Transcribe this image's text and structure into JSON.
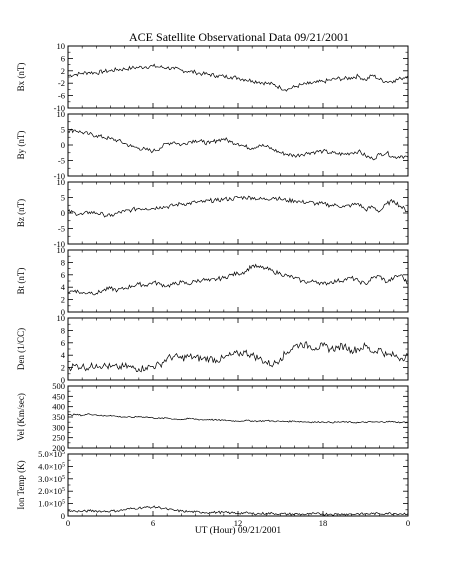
{
  "title": "ACE Satellite Observational Data   09/21/2001",
  "xlabel": "UT (Hour)   09/21/2001",
  "x_tick_labels": [
    "0",
    "6",
    "12",
    "18",
    "0"
  ],
  "chart_data": [
    {
      "type": "line",
      "ylabel": "Bx (nT)",
      "ylim": [
        -10,
        10
      ],
      "yticks": [
        10,
        6,
        2,
        -2,
        -6,
        -10
      ],
      "ytick_labels": [
        "10",
        "6",
        "2",
        "-2",
        "-6",
        "-10"
      ],
      "x": [
        0,
        0.5,
        1,
        1.5,
        2,
        2.5,
        3,
        3.5,
        4,
        4.5,
        5,
        5.5,
        6,
        6.5,
        7,
        7.5,
        8,
        8.5,
        9,
        9.5,
        10,
        10.5,
        11,
        11.5,
        12,
        12.5,
        13,
        13.5,
        14,
        14.5,
        15,
        15.5,
        16,
        16.5,
        17,
        17.5,
        18,
        18.5,
        19,
        19.5,
        20,
        20.5,
        21,
        21.5,
        22,
        22.5,
        23,
        23.5,
        24
      ],
      "series": [
        {
          "values": [
            0.5,
            0.8,
            1.2,
            1.5,
            1.3,
            1.8,
            2.0,
            2.4,
            2.6,
            2.9,
            3.1,
            3.3,
            3.5,
            3.2,
            3.0,
            2.6,
            2.2,
            1.8,
            1.5,
            1.0,
            0.8,
            0.4,
            0.2,
            0.0,
            -0.3,
            -0.8,
            -1.2,
            -1.6,
            -2.0,
            -2.4,
            -3.5,
            -4.0,
            -3.2,
            -2.5,
            -2.2,
            -1.8,
            -1.5,
            -1.0,
            -0.5,
            -0.6,
            -0.2,
            0.3,
            -1.0,
            0.6,
            -0.8,
            -1.5,
            -1.2,
            -0.5,
            0.5
          ]
        }
      ]
    },
    {
      "type": "line",
      "ylabel": "By (nT)",
      "ylim": [
        -10,
        10
      ],
      "yticks": [
        10,
        5,
        0,
        -5,
        -10
      ],
      "ytick_labels": [
        "10",
        "5",
        "0",
        "-5",
        "-10"
      ],
      "x": [
        0,
        0.5,
        1,
        1.5,
        2,
        2.5,
        3,
        3.5,
        4,
        4.5,
        5,
        5.5,
        6,
        6.5,
        7,
        7.5,
        8,
        8.5,
        9,
        9.5,
        10,
        10.5,
        11,
        11.5,
        12,
        12.5,
        13,
        13.5,
        14,
        14.5,
        15,
        15.5,
        16,
        16.5,
        17,
        17.5,
        18,
        18.5,
        19,
        19.5,
        20,
        20.5,
        21,
        21.5,
        22,
        22.5,
        23,
        23.5,
        24
      ],
      "series": [
        {
          "values": [
            4.5,
            4.8,
            4.0,
            3.5,
            3.0,
            2.5,
            2.0,
            1.5,
            0.5,
            -0.5,
            -1.0,
            -1.5,
            -2.0,
            -1.0,
            0.5,
            1.0,
            0.0,
            1.0,
            1.5,
            1.0,
            0.5,
            1.5,
            2.0,
            1.0,
            0.5,
            -0.5,
            -1.0,
            0.0,
            -0.5,
            -1.5,
            -2.5,
            -3.0,
            -3.5,
            -3.0,
            -2.5,
            -2.2,
            -2.0,
            -2.5,
            -2.8,
            -3.0,
            -2.5,
            -2.0,
            -3.5,
            -4.5,
            -3.0,
            -2.5,
            -4.0,
            -3.5,
            -4.0
          ]
        }
      ]
    },
    {
      "type": "line",
      "ylabel": "Bz (nT)",
      "ylim": [
        -10,
        10
      ],
      "yticks": [
        10,
        5,
        0,
        -5,
        -10
      ],
      "ytick_labels": [
        "10",
        "5",
        "0",
        "-5",
        "-10"
      ],
      "x": [
        0,
        0.5,
        1,
        1.5,
        2,
        2.5,
        3,
        3.5,
        4,
        4.5,
        5,
        5.5,
        6,
        6.5,
        7,
        7.5,
        8,
        8.5,
        9,
        9.5,
        10,
        10.5,
        11,
        11.5,
        12,
        12.5,
        13,
        13.5,
        14,
        14.5,
        15,
        15.5,
        16,
        16.5,
        17,
        17.5,
        18,
        18.5,
        19,
        19.5,
        20,
        20.5,
        21,
        21.5,
        22,
        22.5,
        23,
        23.5,
        24
      ],
      "series": [
        {
          "values": [
            0.5,
            0.0,
            -0.5,
            0.3,
            0.0,
            -0.5,
            -1.0,
            0.0,
            0.5,
            1.0,
            1.5,
            1.5,
            1.5,
            2.0,
            2.0,
            2.5,
            3.0,
            3.0,
            3.5,
            3.5,
            4.0,
            4.0,
            4.5,
            4.5,
            5.0,
            5.0,
            5.0,
            4.5,
            4.5,
            5.0,
            4.5,
            4.0,
            4.0,
            3.5,
            3.5,
            3.0,
            3.0,
            2.5,
            2.5,
            2.0,
            2.5,
            3.0,
            1.0,
            2.0,
            0.5,
            3.0,
            4.0,
            2.0,
            0.5
          ]
        }
      ]
    },
    {
      "type": "line",
      "ylabel": "Bt (nT)",
      "ylim": [
        0,
        10
      ],
      "yticks": [
        10,
        8,
        6,
        4,
        2,
        0
      ],
      "ytick_labels": [
        "10",
        "8",
        "6",
        "4",
        "2",
        "0"
      ],
      "x": [
        0,
        0.5,
        1,
        1.5,
        2,
        2.5,
        3,
        3.5,
        4,
        4.5,
        5,
        5.5,
        6,
        6.5,
        7,
        7.5,
        8,
        8.5,
        9,
        9.5,
        10,
        10.5,
        11,
        11.5,
        12,
        12.5,
        13,
        13.5,
        14,
        14.5,
        15,
        15.5,
        16,
        16.5,
        17,
        17.5,
        18,
        18.5,
        19,
        19.5,
        20,
        20.5,
        21,
        21.5,
        22,
        22.5,
        23,
        23.5,
        24
      ],
      "series": [
        {
          "values": [
            3.2,
            3.5,
            3.0,
            3.2,
            3.0,
            3.5,
            3.8,
            3.5,
            3.8,
            4.2,
            4.5,
            4.3,
            4.8,
            4.5,
            4.2,
            4.5,
            4.8,
            4.5,
            5.0,
            5.2,
            5.0,
            5.3,
            5.5,
            6.0,
            6.2,
            6.5,
            7.5,
            7.2,
            7.0,
            6.5,
            6.2,
            5.8,
            5.5,
            5.0,
            4.8,
            5.0,
            4.5,
            4.8,
            5.0,
            5.2,
            5.5,
            5.0,
            4.5,
            5.5,
            5.8,
            4.8,
            5.5,
            6.0,
            4.5
          ]
        }
      ]
    },
    {
      "type": "line",
      "ylabel": "Den (1/CC)",
      "ylim": [
        0,
        10
      ],
      "yticks": [
        10,
        8,
        6,
        4,
        2,
        0
      ],
      "ytick_labels": [
        "10",
        "8",
        "6",
        "4",
        "2",
        "0"
      ],
      "x": [
        0,
        0.5,
        1,
        1.5,
        2,
        2.5,
        3,
        3.5,
        4,
        4.5,
        5,
        5.5,
        6,
        6.5,
        7,
        7.5,
        8,
        8.5,
        9,
        9.5,
        10,
        10.5,
        11,
        11.5,
        12,
        12.5,
        13,
        13.5,
        14,
        14.5,
        15,
        15.5,
        16,
        16.5,
        17,
        17.5,
        18,
        18.5,
        19,
        19.5,
        20,
        20.5,
        21,
        21.5,
        22,
        22.5,
        23,
        23.5,
        24
      ],
      "series": [
        {
          "values": [
            2.0,
            2.3,
            2.2,
            2.0,
            2.5,
            2.3,
            2.1,
            2.0,
            2.2,
            2.0,
            1.8,
            2.0,
            2.2,
            2.5,
            3.5,
            3.8,
            3.5,
            3.8,
            3.6,
            3.4,
            3.5,
            3.2,
            3.5,
            4.0,
            4.2,
            4.5,
            4.0,
            3.5,
            2.8,
            2.5,
            3.5,
            4.5,
            5.5,
            5.8,
            5.5,
            5.2,
            5.5,
            5.0,
            5.2,
            5.5,
            4.8,
            5.0,
            5.5,
            4.5,
            5.0,
            4.0,
            4.0,
            3.5,
            4.0
          ]
        }
      ]
    },
    {
      "type": "line",
      "ylabel": "Vel (Km/sec)",
      "ylim": [
        200,
        500
      ],
      "yticks": [
        500,
        450,
        400,
        350,
        300,
        250,
        200
      ],
      "ytick_labels": [
        "500",
        "450",
        "400",
        "350",
        "300",
        "250",
        "200"
      ],
      "x": [
        0,
        0.5,
        1,
        1.5,
        2,
        2.5,
        3,
        3.5,
        4,
        4.5,
        5,
        5.5,
        6,
        6.5,
        7,
        7.5,
        8,
        8.5,
        9,
        9.5,
        10,
        10.5,
        11,
        11.5,
        12,
        12.5,
        13,
        13.5,
        14,
        14.5,
        15,
        15.5,
        16,
        16.5,
        17,
        17.5,
        18,
        18.5,
        19,
        19.5,
        20,
        20.5,
        21,
        21.5,
        22,
        22.5,
        23,
        23.5,
        24
      ],
      "series": [
        {
          "values": [
            360,
            362,
            358,
            365,
            360,
            355,
            358,
            352,
            350,
            348,
            352,
            350,
            346,
            343,
            345,
            340,
            338,
            342,
            340,
            336,
            338,
            335,
            334,
            332,
            330,
            333,
            331,
            330,
            332,
            330,
            329,
            328,
            330,
            327,
            326,
            325,
            326,
            324,
            325,
            326,
            324,
            323,
            325,
            326,
            325,
            328,
            326,
            324,
            325
          ]
        }
      ]
    },
    {
      "type": "line",
      "ylabel": "Ion Temp (K)",
      "ylim": [
        0,
        500000
      ],
      "yticks": [
        500000,
        400000,
        300000,
        200000,
        100000,
        0
      ],
      "ytick_labels": [
        "5.0×10",
        "4.0×10",
        "3.0×10",
        "2.0×10",
        "1.0×10",
        "0"
      ],
      "ytick_exponent": "5",
      "x": [
        0,
        0.5,
        1,
        1.5,
        2,
        2.5,
        3,
        3.5,
        4,
        4.5,
        5,
        5.5,
        6,
        6.5,
        7,
        7.5,
        8,
        8.5,
        9,
        9.5,
        10,
        10.5,
        11,
        11.5,
        12,
        12.5,
        13,
        13.5,
        14,
        14.5,
        15,
        15.5,
        16,
        16.5,
        17,
        17.5,
        18,
        18.5,
        19,
        19.5,
        20,
        20.5,
        21,
        21.5,
        22,
        22.5,
        23,
        23.5,
        24
      ],
      "series": [
        {
          "values": [
            38000,
            40000,
            36000,
            42000,
            40000,
            38000,
            40000,
            42000,
            50000,
            60000,
            65000,
            70000,
            72000,
            68000,
            55000,
            45000,
            40000,
            35000,
            32000,
            30000,
            28000,
            30000,
            29000,
            25000,
            22000,
            25000,
            20000,
            18000,
            22000,
            20000,
            18000,
            15000,
            16000,
            14000,
            15000,
            18000,
            16000,
            15000,
            14000,
            16000,
            15000,
            18000,
            16000,
            20000,
            18000,
            22000,
            20000,
            18000,
            20000
          ]
        }
      ]
    }
  ]
}
